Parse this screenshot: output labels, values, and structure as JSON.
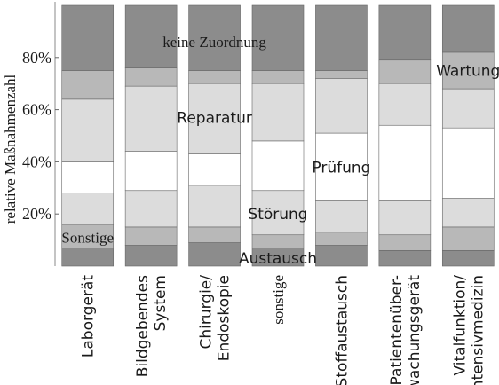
{
  "chart_data": {
    "type": "bar",
    "stacked": true,
    "title": "",
    "xlabel": "",
    "ylabel": "relative Maßnahmenzahl",
    "ylim": [
      0,
      100
    ],
    "yticks": [
      20,
      40,
      60,
      80
    ],
    "ytick_labels": [
      "20%",
      "40%",
      "60%",
      "80%"
    ],
    "grid": false,
    "categories": [
      "Laborgerät",
      "Bildgebendes\nSystem",
      "Chirurgie/\nEndoskopie",
      "sonstige",
      "Stoffaustausch",
      "Patientenüber-\nwachungsgerät",
      "Vitalfunktion/\nIntensivmedizin"
    ],
    "series": [
      {
        "name": "Austausch",
        "color": "#8c8c8c",
        "values": [
          7,
          8,
          9,
          7,
          8,
          6,
          6
        ]
      },
      {
        "name": "Sonstige",
        "color": "#b8b8b8",
        "values": [
          9,
          7,
          6,
          5,
          5,
          6,
          9
        ]
      },
      {
        "name": "Störung",
        "color": "#dcdcdc",
        "values": [
          12,
          14,
          16,
          17,
          12,
          13,
          11
        ]
      },
      {
        "name": "Prüfung",
        "color": "#ffffff",
        "values": [
          12,
          15,
          12,
          19,
          26,
          29,
          27
        ]
      },
      {
        "name": "Reparatur",
        "color": "#dcdcdc",
        "values": [
          24,
          25,
          27,
          22,
          21,
          16,
          15
        ]
      },
      {
        "name": "Wartung",
        "color": "#b8b8b8",
        "values": [
          11,
          7,
          5,
          5,
          3,
          9,
          14
        ]
      },
      {
        "name": "keine Zuordnung",
        "color": "#8c8c8c",
        "values": [
          25,
          24,
          25,
          25,
          25,
          21,
          18
        ]
      }
    ],
    "segment_labels": [
      {
        "text": "keine Zuordnung",
        "series": "keine Zuordnung",
        "category_index": 2,
        "value": 86
      },
      {
        "text": "Wartung",
        "series": "Wartung",
        "category_index": 6,
        "value": 75
      },
      {
        "text": "Reparatur",
        "series": "Reparatur",
        "category_index": 2,
        "value": 57
      },
      {
        "text": "Prüfung",
        "series": "Prüfung",
        "category_index": 4,
        "value": 38
      },
      {
        "text": "Störung",
        "series": "Störung",
        "category_index": 3,
        "value": 20
      },
      {
        "text": "Sonstige",
        "series": "Sonstige",
        "category_index": 0,
        "value": 11
      },
      {
        "text": "Austausch",
        "series": "Austausch",
        "category_index": 3,
        "value": 3
      }
    ]
  }
}
